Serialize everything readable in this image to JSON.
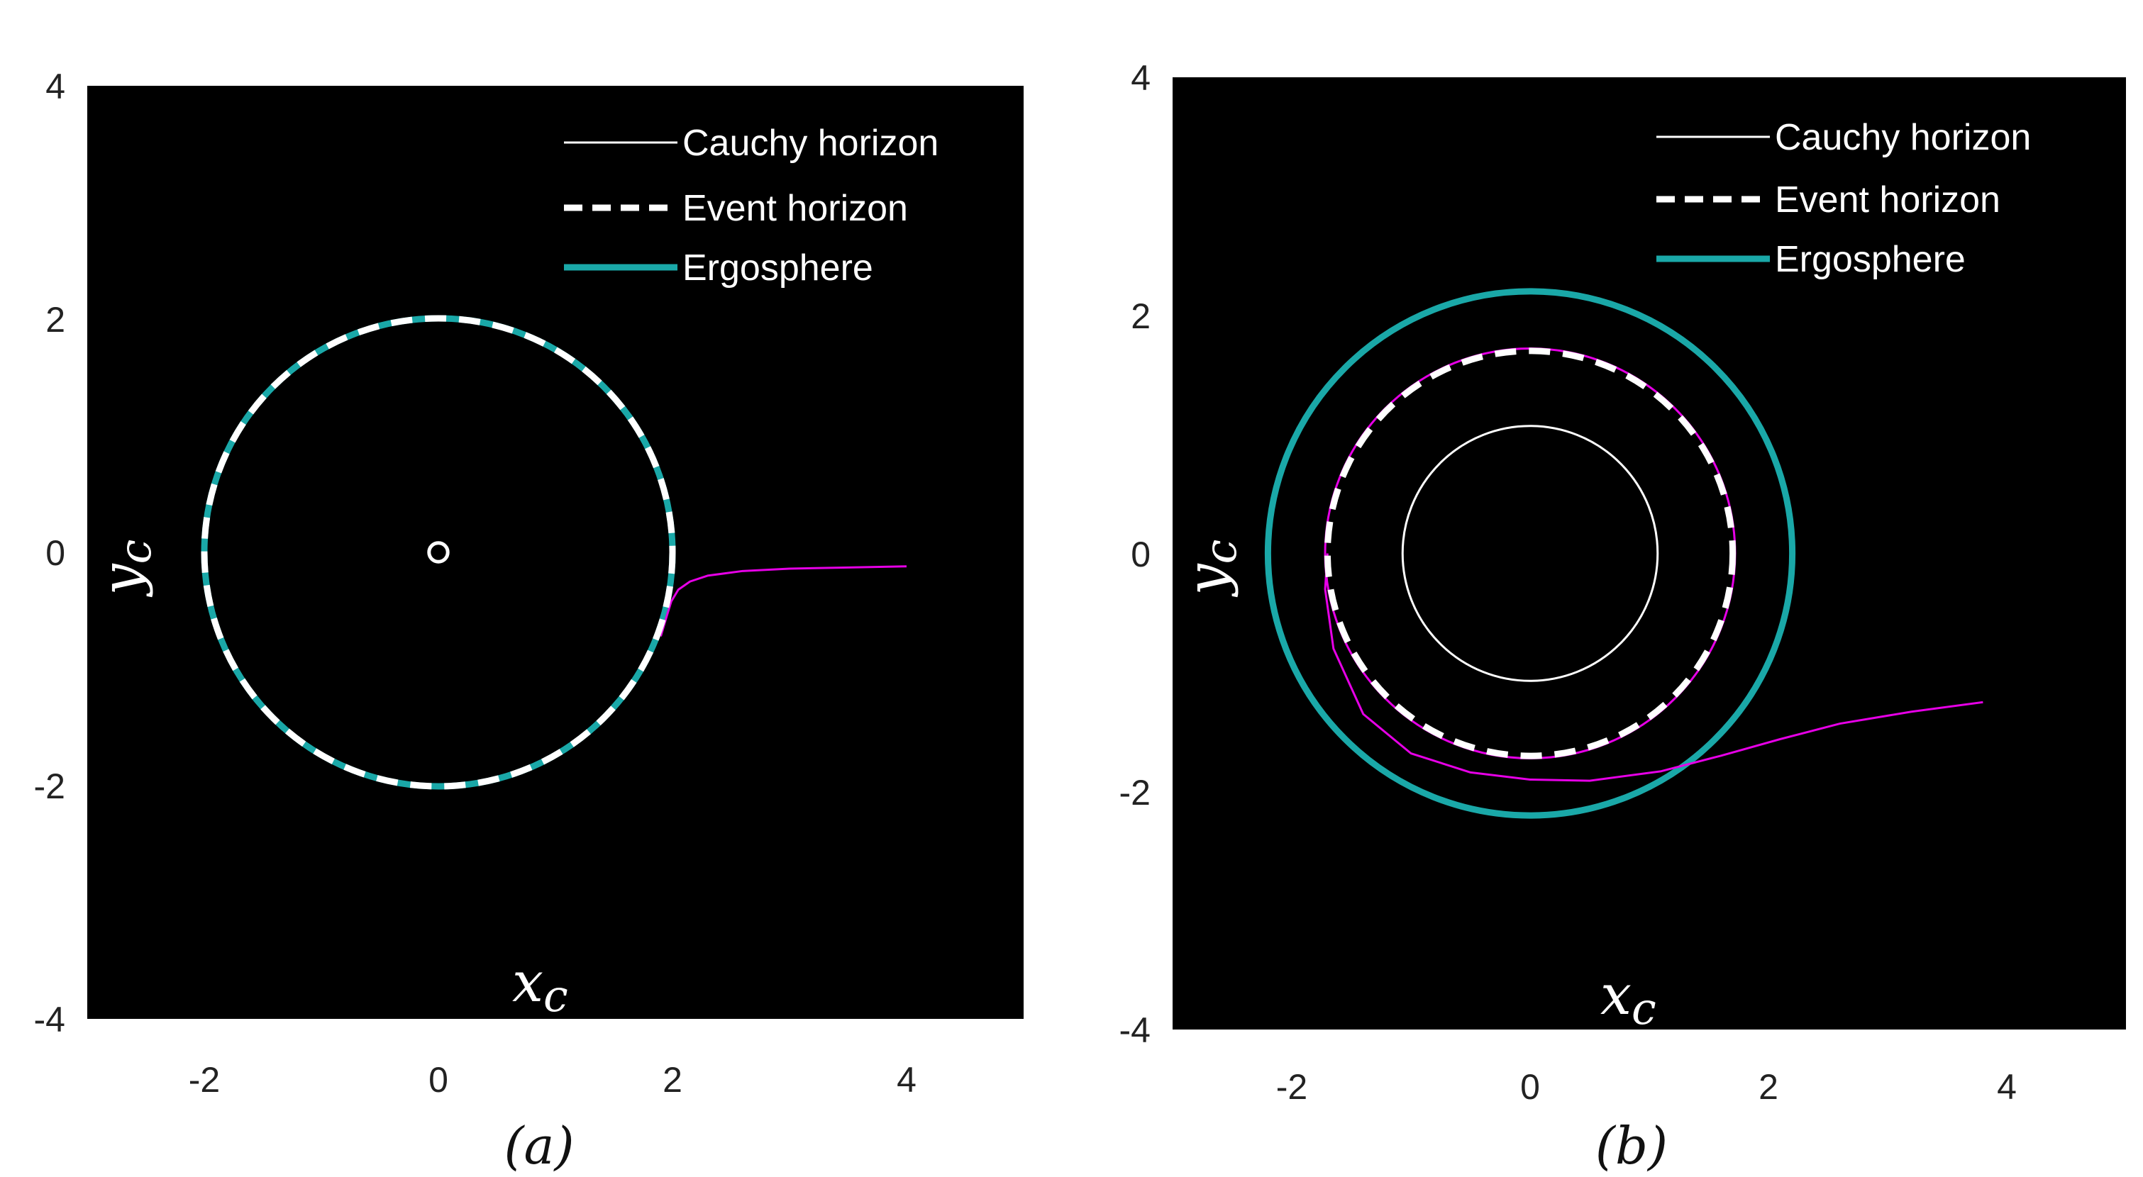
{
  "chart_data": [
    {
      "type": "line",
      "panel_caption": "(a)",
      "xlabel": "x",
      "xlabel_sub": "c",
      "ylabel": "y",
      "ylabel_sub": "c",
      "xlim": [
        -3,
        5
      ],
      "ylim": [
        -4,
        4
      ],
      "xticks": [
        "-2",
        "0",
        "2",
        "4"
      ],
      "yticks": [
        "4",
        "2",
        "0",
        "-2",
        "-4"
      ],
      "background": "#000000",
      "grid": false,
      "legend_position": "top-right",
      "legend": [
        {
          "label": "Cauchy horizon",
          "style": "solid",
          "color": "#ffffff"
        },
        {
          "label": "Event horizon",
          "style": "dashed",
          "color": "#ffffff"
        },
        {
          "label": "Ergosphere",
          "style": "solid-thick",
          "color": "#1aa8a8"
        }
      ],
      "series": [
        {
          "name": "Cauchy horizon",
          "shape": "circle",
          "center": [
            0,
            0
          ],
          "radius": 0.08,
          "color": "#ffffff"
        },
        {
          "name": "Event horizon",
          "shape": "circle",
          "center": [
            0,
            0
          ],
          "radius": 2.0,
          "color": "#ffffff"
        },
        {
          "name": "Ergosphere",
          "shape": "circle",
          "center": [
            0,
            0
          ],
          "radius": 2.0,
          "color": "#1aa8a8"
        },
        {
          "shape": "trajectory",
          "color": "#e600e6",
          "x": [
            4.0,
            3.5,
            3.0,
            2.6,
            2.3,
            2.15,
            2.05,
            1.99,
            1.95,
            1.9
          ],
          "y": [
            -0.12,
            -0.13,
            -0.14,
            -0.16,
            -0.2,
            -0.25,
            -0.32,
            -0.42,
            -0.55,
            -0.72
          ]
        }
      ]
    },
    {
      "type": "line",
      "panel_caption": "(b)",
      "xlabel": "x",
      "xlabel_sub": "c",
      "ylabel": "y",
      "ylabel_sub": "c",
      "xlim": [
        -3,
        5
      ],
      "ylim": [
        -4,
        4
      ],
      "xticks": [
        "-2",
        "0",
        "2",
        "4"
      ],
      "yticks": [
        "4",
        "2",
        "0",
        "-2",
        "-4"
      ],
      "background": "#000000",
      "grid": false,
      "legend_position": "top-right",
      "legend": [
        {
          "label": "Cauchy horizon",
          "style": "solid",
          "color": "#ffffff"
        },
        {
          "label": "Event horizon",
          "style": "dashed",
          "color": "#ffffff"
        },
        {
          "label": "Ergosphere",
          "style": "solid-thick",
          "color": "#1aa8a8"
        }
      ],
      "series": [
        {
          "name": "Cauchy horizon",
          "shape": "circle",
          "center": [
            0,
            0
          ],
          "radius": 1.07,
          "color": "#ffffff"
        },
        {
          "name": "Event horizon",
          "shape": "circle",
          "center": [
            0,
            0
          ],
          "radius": 1.7,
          "color": "#ffffff"
        },
        {
          "name": "Ergosphere",
          "shape": "circle",
          "center": [
            0,
            0
          ],
          "radius": 2.2,
          "color": "#1aa8a8"
        },
        {
          "shape": "circle",
          "center": [
            0,
            0
          ],
          "radius": 1.72,
          "color": "#e600e6"
        },
        {
          "shape": "trajectory",
          "color": "#e600e6",
          "x": [
            3.8,
            3.2,
            2.6,
            2.1,
            1.6,
            1.1,
            0.5,
            0.0,
            -0.5,
            -1.0,
            -1.4,
            -1.65,
            -1.72,
            -1.7
          ],
          "y": [
            -1.25,
            -1.33,
            -1.43,
            -1.56,
            -1.7,
            -1.83,
            -1.91,
            -1.9,
            -1.84,
            -1.68,
            -1.35,
            -0.8,
            -0.3,
            0.0
          ]
        }
      ]
    }
  ]
}
